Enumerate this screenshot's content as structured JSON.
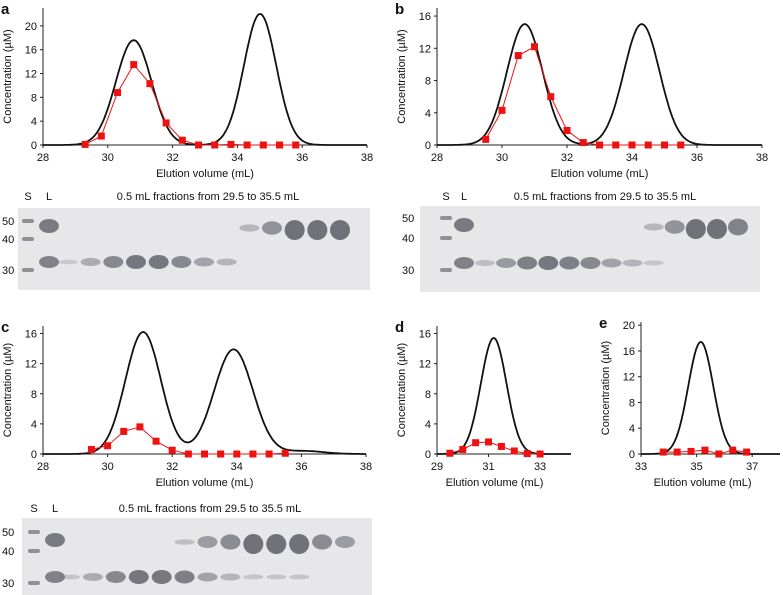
{
  "chart_data": [
    {
      "panel": "a",
      "type": "line",
      "xlabel": "Elution volume (mL)",
      "ylabel": "Concentration (µM)",
      "xlim": [
        28,
        38
      ],
      "ylim": [
        0,
        23
      ],
      "xticks": [
        28,
        30,
        32,
        34,
        36,
        38
      ],
      "yticks": [
        0,
        4,
        8,
        12,
        16,
        20
      ],
      "series": [
        {
          "name": "chromatogram",
          "color": "#111111",
          "peaks": [
            {
              "center": 30.8,
              "height": 17.6,
              "sigma": 0.55
            },
            {
              "center": 34.7,
              "height": 22,
              "sigma": 0.5
            }
          ]
        },
        {
          "name": "fractions",
          "color": "#ee1111",
          "x": [
            29.3,
            29.8,
            30.3,
            30.8,
            31.3,
            31.8,
            32.3,
            32.8,
            33.3,
            33.8,
            34.3,
            34.8,
            35.3,
            35.8
          ],
          "y": [
            0.1,
            1.5,
            8.8,
            13.5,
            10.3,
            3.7,
            0.8,
            0,
            0,
            0.1,
            0,
            0,
            0,
            0
          ]
        }
      ]
    },
    {
      "panel": "b",
      "type": "line",
      "xlabel": "Elution volume (mL)",
      "ylabel": "Concentration (µM)",
      "xlim": [
        28,
        38
      ],
      "ylim": [
        0,
        17
      ],
      "xticks": [
        28,
        30,
        32,
        34,
        36,
        38
      ],
      "yticks": [
        0,
        4,
        8,
        12,
        16
      ],
      "series": [
        {
          "name": "chromatogram",
          "color": "#111111",
          "peaks": [
            {
              "center": 30.7,
              "height": 15,
              "sigma": 0.55
            },
            {
              "center": 34.3,
              "height": 15,
              "sigma": 0.55
            }
          ]
        },
        {
          "name": "fractions",
          "color": "#ee1111",
          "x": [
            29.5,
            30,
            30.5,
            31,
            31.5,
            32,
            32.5,
            33,
            33.5,
            34,
            34.5,
            35,
            35.5
          ],
          "y": [
            0.7,
            4.3,
            11.1,
            12.2,
            6,
            1.8,
            0.3,
            0,
            0,
            0,
            0,
            0,
            0
          ]
        }
      ]
    },
    {
      "panel": "c",
      "type": "line",
      "xlabel": "Elution volume (mL)",
      "ylabel": "Concentration (µM)",
      "xlim": [
        28,
        38
      ],
      "ylim": [
        0,
        17
      ],
      "xticks": [
        28,
        30,
        32,
        34,
        36,
        38
      ],
      "yticks": [
        0,
        4,
        8,
        12,
        16
      ],
      "series": [
        {
          "name": "chromatogram",
          "color": "#111111",
          "peaks": [
            {
              "center": 31.1,
              "height": 16.2,
              "sigma": 0.55
            },
            {
              "center": 33.9,
              "height": 13.9,
              "sigma": 0.6
            },
            {
              "center": 36.1,
              "height": 0.4,
              "sigma": 0.6
            }
          ]
        },
        {
          "name": "fractions",
          "color": "#ee1111",
          "x": [
            29.5,
            30,
            30.5,
            31,
            31.5,
            32,
            32.5,
            33,
            33.5,
            34,
            34.5,
            35,
            35.5
          ],
          "y": [
            0.6,
            1.1,
            3,
            3.6,
            1.7,
            0.5,
            0,
            0,
            0,
            0,
            0,
            0,
            0.1
          ]
        }
      ]
    },
    {
      "panel": "d",
      "type": "line",
      "xlabel": "Elution volume (mL)",
      "ylabel": "Concentration (µM)",
      "xlim": [
        29,
        34.2
      ],
      "ylim": [
        0,
        17
      ],
      "xticks": [
        29,
        31,
        33
      ],
      "yticks": [
        0,
        4,
        8,
        12,
        16
      ],
      "series": [
        {
          "name": "chromatogram",
          "color": "#111111",
          "peaks": [
            {
              "center": 31.2,
              "height": 15.4,
              "sigma": 0.5
            }
          ]
        },
        {
          "name": "fractions",
          "color": "#ee1111",
          "x": [
            29.5,
            30,
            30.5,
            31,
            31.5,
            32,
            32.5,
            33
          ],
          "y": [
            0.1,
            0.6,
            1.5,
            1.6,
            1,
            0.4,
            0.05,
            0
          ]
        }
      ]
    },
    {
      "panel": "e",
      "type": "line",
      "xlabel": "Elution volume (mL)",
      "ylabel": "Concentration (µM)",
      "xlim": [
        33,
        38
      ],
      "ylim": [
        0,
        20.5
      ],
      "xticks": [
        33,
        35,
        37
      ],
      "yticks": [
        0,
        4,
        8,
        12,
        16,
        20
      ],
      "series": [
        {
          "name": "chromatogram",
          "color": "#111111",
          "peaks": [
            {
              "center": 35.15,
              "height": 17.4,
              "sigma": 0.45
            }
          ]
        },
        {
          "name": "fractions",
          "color": "#ee1111",
          "x": [
            33.8,
            34.3,
            34.8,
            35.3,
            35.8,
            36.3,
            36.8
          ],
          "y": [
            0.3,
            0.3,
            0.4,
            0.6,
            0,
            0.6,
            0.3
          ]
        }
      ]
    }
  ],
  "gels": [
    {
      "panel": "a",
      "lane_S": "S",
      "lane_L": "L",
      "title": "0.5 mL fractions from 29.5 to 35.5 mL",
      "markers": [
        "50",
        "40",
        "30"
      ],
      "upper_band": [
        0,
        0,
        0,
        0,
        0,
        0,
        0,
        0,
        0.2,
        0.6,
        1,
        1,
        1
      ],
      "lower_band": [
        0.05,
        0.4,
        0.8,
        1,
        1,
        0.8,
        0.5,
        0.3,
        0,
        0,
        0,
        0,
        0
      ]
    },
    {
      "panel": "b",
      "lane_S": "S",
      "lane_L": "L",
      "title": "0.5 mL fractions from 29.5 to 35.5 mL",
      "markers": [
        "50",
        "40",
        "30"
      ],
      "upper_band": [
        0,
        0,
        0,
        0,
        0,
        0,
        0,
        0,
        0.2,
        0.6,
        1,
        1,
        0.8
      ],
      "lower_band": [
        0.2,
        0.6,
        0.9,
        1,
        0.9,
        0.8,
        0.5,
        0.3,
        0.1,
        0,
        0,
        0,
        0
      ]
    },
    {
      "panel": "c",
      "lane_S": "S",
      "lane_L": "L",
      "title": "0.5 mL fractions from 29.5 to 35.5 mL",
      "markers": [
        "50",
        "40",
        "30"
      ],
      "upper_band": [
        0,
        0,
        0,
        0,
        0,
        0.1,
        0.5,
        0.7,
        1,
        1,
        1,
        0.7,
        0.5
      ],
      "lower_band": [
        0.1,
        0.4,
        0.8,
        1,
        1,
        0.9,
        0.5,
        0.3,
        0.1,
        0.1,
        0.1,
        0,
        0
      ]
    }
  ]
}
